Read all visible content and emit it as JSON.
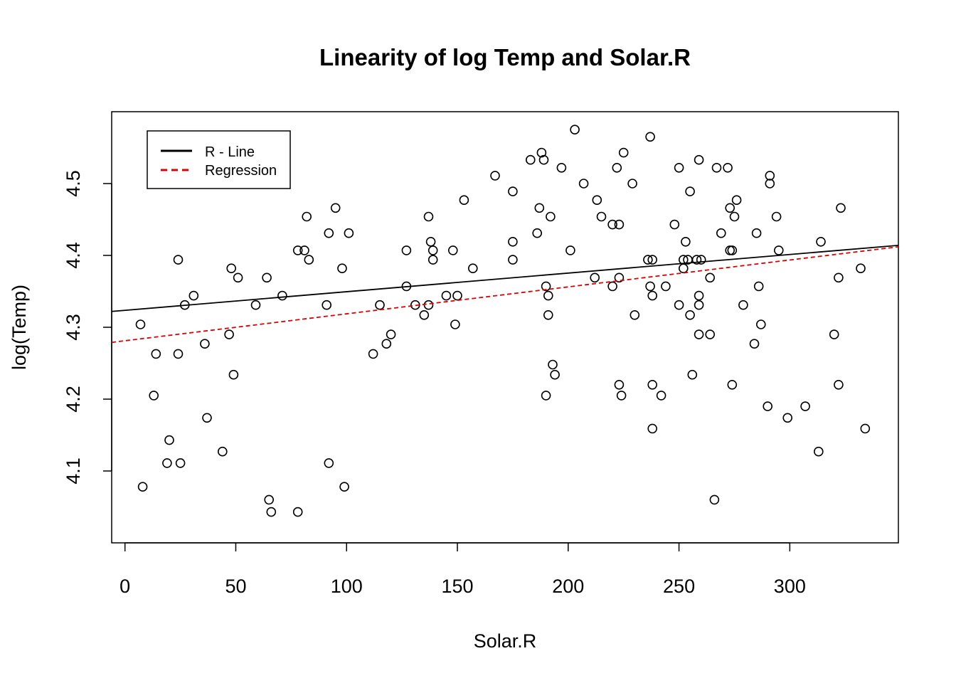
{
  "chart_data": {
    "type": "scatter",
    "title": "Linearity of log Temp and Solar.R",
    "xlabel": "Solar.R",
    "ylabel": "log(Temp)",
    "xlim": [
      -6,
      349
    ],
    "ylim": [
      4.0,
      4.6
    ],
    "xticks": [
      0,
      50,
      100,
      150,
      200,
      250,
      300
    ],
    "yticks": [
      4.1,
      4.2,
      4.3,
      4.4,
      4.5
    ],
    "ytick_labels": [
      "4.1",
      "4.2",
      "4.3",
      "4.4",
      "4.5"
    ],
    "grid": false,
    "legend_position": "top-left",
    "legend": [
      {
        "label": "R - Line",
        "color": "#000000",
        "dash": "solid"
      },
      {
        "label": "Regression",
        "color": "#dd0000",
        "dash": "dashed"
      }
    ],
    "lines": [
      {
        "name": "R - Line",
        "color": "#000000",
        "dash": "solid",
        "x": [
          -6,
          349
        ],
        "y": [
          4.322,
          4.414
        ]
      },
      {
        "name": "Regression",
        "color": "#dd0000",
        "dash": "dashed",
        "x": [
          -6,
          349
        ],
        "y": [
          4.279,
          4.412
        ]
      }
    ],
    "points": [
      [
        7,
        4.304
      ],
      [
        8,
        4.078
      ],
      [
        13,
        4.205
      ],
      [
        14,
        4.263
      ],
      [
        19,
        4.111
      ],
      [
        20,
        4.143
      ],
      [
        24,
        4.394
      ],
      [
        24,
        4.263
      ],
      [
        25,
        4.111
      ],
      [
        27,
        4.331
      ],
      [
        31,
        4.344
      ],
      [
        36,
        4.277
      ],
      [
        37,
        4.174
      ],
      [
        44,
        4.127
      ],
      [
        47,
        4.29
      ],
      [
        48,
        4.382
      ],
      [
        49,
        4.234
      ],
      [
        51,
        4.369
      ],
      [
        59,
        4.331
      ],
      [
        64,
        4.369
      ],
      [
        65,
        4.06
      ],
      [
        66,
        4.043
      ],
      [
        71,
        4.344
      ],
      [
        78,
        4.407
      ],
      [
        78,
        4.043
      ],
      [
        81,
        4.407
      ],
      [
        82,
        4.454
      ],
      [
        83,
        4.394
      ],
      [
        91,
        4.331
      ],
      [
        92,
        4.431
      ],
      [
        92,
        4.111
      ],
      [
        95,
        4.466
      ],
      [
        98,
        4.382
      ],
      [
        99,
        4.078
      ],
      [
        101,
        4.431
      ],
      [
        112,
        4.263
      ],
      [
        115,
        4.331
      ],
      [
        118,
        4.277
      ],
      [
        120,
        4.29
      ],
      [
        127,
        4.407
      ],
      [
        127,
        4.357
      ],
      [
        131,
        4.331
      ],
      [
        135,
        4.317
      ],
      [
        137,
        4.331
      ],
      [
        137,
        4.454
      ],
      [
        138,
        4.419
      ],
      [
        139,
        4.407
      ],
      [
        139,
        4.394
      ],
      [
        145,
        4.344
      ],
      [
        148,
        4.407
      ],
      [
        149,
        4.304
      ],
      [
        150,
        4.344
      ],
      [
        153,
        4.477
      ],
      [
        157,
        4.382
      ],
      [
        167,
        4.511
      ],
      [
        175,
        4.489
      ],
      [
        175,
        4.419
      ],
      [
        175,
        4.394
      ],
      [
        183,
        4.533
      ],
      [
        186,
        4.431
      ],
      [
        187,
        4.466
      ],
      [
        188,
        4.543
      ],
      [
        189,
        4.533
      ],
      [
        190,
        4.357
      ],
      [
        190,
        4.205
      ],
      [
        191,
        4.344
      ],
      [
        191,
        4.317
      ],
      [
        192,
        4.454
      ],
      [
        193,
        4.248
      ],
      [
        194,
        4.234
      ],
      [
        197,
        4.522
      ],
      [
        201,
        4.407
      ],
      [
        203,
        4.575
      ],
      [
        207,
        4.5
      ],
      [
        212,
        4.369
      ],
      [
        213,
        4.477
      ],
      [
        215,
        4.454
      ],
      [
        220,
        4.443
      ],
      [
        220,
        4.357
      ],
      [
        222,
        4.522
      ],
      [
        223,
        4.443
      ],
      [
        223,
        4.369
      ],
      [
        223,
        4.22
      ],
      [
        224,
        4.205
      ],
      [
        225,
        4.543
      ],
      [
        229,
        4.5
      ],
      [
        230,
        4.317
      ],
      [
        236,
        4.394
      ],
      [
        237,
        4.565
      ],
      [
        237,
        4.357
      ],
      [
        238,
        4.394
      ],
      [
        238,
        4.344
      ],
      [
        238,
        4.22
      ],
      [
        238,
        4.159
      ],
      [
        242,
        4.205
      ],
      [
        244,
        4.357
      ],
      [
        248,
        4.443
      ],
      [
        250,
        4.522
      ],
      [
        250,
        4.331
      ],
      [
        252,
        4.394
      ],
      [
        252,
        4.382
      ],
      [
        253,
        4.419
      ],
      [
        254,
        4.394
      ],
      [
        255,
        4.489
      ],
      [
        255,
        4.317
      ],
      [
        256,
        4.234
      ],
      [
        258,
        4.394
      ],
      [
        259,
        4.533
      ],
      [
        259,
        4.344
      ],
      [
        259,
        4.331
      ],
      [
        259,
        4.29
      ],
      [
        260,
        4.394
      ],
      [
        264,
        4.369
      ],
      [
        264,
        4.29
      ],
      [
        266,
        4.06
      ],
      [
        267,
        4.522
      ],
      [
        269,
        4.431
      ],
      [
        272,
        4.522
      ],
      [
        273,
        4.466
      ],
      [
        273,
        4.407
      ],
      [
        274,
        4.407
      ],
      [
        274,
        4.22
      ],
      [
        275,
        4.454
      ],
      [
        276,
        4.477
      ],
      [
        279,
        4.331
      ],
      [
        284,
        4.277
      ],
      [
        285,
        4.431
      ],
      [
        286,
        4.357
      ],
      [
        287,
        4.304
      ],
      [
        290,
        4.19
      ],
      [
        291,
        4.511
      ],
      [
        291,
        4.5
      ],
      [
        294,
        4.454
      ],
      [
        295,
        4.407
      ],
      [
        299,
        4.174
      ],
      [
        307,
        4.19
      ],
      [
        313,
        4.127
      ],
      [
        314,
        4.419
      ],
      [
        320,
        4.29
      ],
      [
        322,
        4.369
      ],
      [
        322,
        4.22
      ],
      [
        323,
        4.466
      ],
      [
        332,
        4.382
      ],
      [
        334,
        4.159
      ]
    ]
  }
}
